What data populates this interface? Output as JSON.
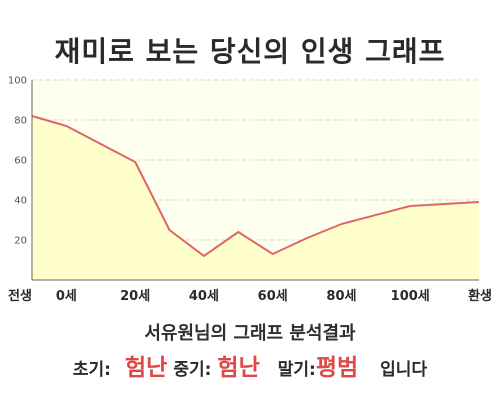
{
  "chart_data": {
    "type": "area",
    "title": "재미로 보는 당신의 인생 그래프",
    "categories": [
      "전생",
      "0세",
      "20세",
      "40세",
      "60세",
      "80세",
      "100세",
      "환생"
    ],
    "y_ticks": [
      100,
      80,
      60,
      40,
      20
    ],
    "ylim": [
      0,
      100
    ],
    "grid": true,
    "series": [
      {
        "points": [
          {
            "x": -10,
            "y": 82
          },
          {
            "x": 0,
            "y": 77
          },
          {
            "x": 20,
            "y": 59
          },
          {
            "x": 30,
            "y": 25
          },
          {
            "x": 40,
            "y": 12
          },
          {
            "x": 50,
            "y": 24
          },
          {
            "x": 60,
            "y": 13
          },
          {
            "x": 70,
            "y": 21
          },
          {
            "x": 80,
            "y": 28
          },
          {
            "x": 100,
            "y": 37
          },
          {
            "x": 120,
            "y": 39
          }
        ]
      }
    ],
    "colors": {
      "line": "#e06666",
      "fill": "#ffffcc",
      "grid": "#d8d8c0",
      "axis": "#666666"
    }
  },
  "result": {
    "title": "서유원님의 그래프 분석결과",
    "early_label": "초기:",
    "early_value": "험난",
    "middle_label": "중기:",
    "middle_value": "험난",
    "late_label": "말기:",
    "late_value": "평범",
    "suffix": "입니다"
  }
}
